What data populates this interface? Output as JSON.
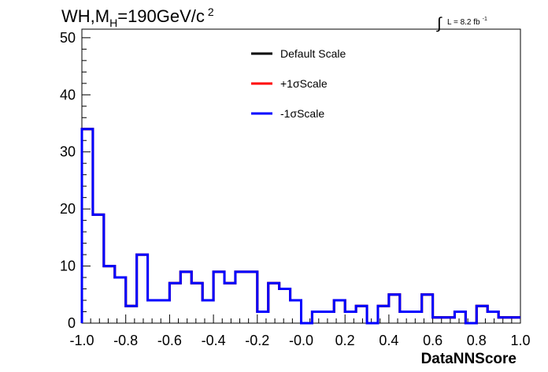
{
  "chart_data": {
    "type": "line",
    "title_main": "WH,M",
    "title_sub": "H",
    "title_rest": "=190GeV/c",
    "title_sup": "2",
    "lumi_text": "L = 8.2 fb",
    "lumi_sup": "-1",
    "xlabel": "DataNNScore",
    "ylabel": "",
    "xlim": [
      -1.0,
      1.0
    ],
    "ylim": [
      0,
      51.5
    ],
    "x_ticks": [
      "-1.0",
      "-0.8",
      "-0.6",
      "-0.4",
      "-0.2",
      "-0.0",
      "0.2",
      "0.4",
      "0.6",
      "0.8",
      "1.0"
    ],
    "y_ticks": [
      "0",
      "10",
      "20",
      "30",
      "40",
      "50"
    ],
    "bin_edges": [
      -1.0,
      -0.95,
      -0.9,
      -0.85,
      -0.8,
      -0.75,
      -0.7,
      -0.65,
      -0.6,
      -0.55,
      -0.5,
      -0.45,
      -0.4,
      -0.35,
      -0.3,
      -0.25,
      -0.2,
      -0.15,
      -0.1,
      -0.05,
      0.0,
      0.05,
      0.1,
      0.15,
      0.2,
      0.25,
      0.3,
      0.35,
      0.4,
      0.45,
      0.5,
      0.55,
      0.6,
      0.65,
      0.7,
      0.75,
      0.8,
      0.85,
      0.9,
      0.95,
      1.0
    ],
    "legend_position": "top-center",
    "series": [
      {
        "name": "Default Scale",
        "color": "#000000",
        "values": [
          34,
          19,
          10,
          8,
          3,
          12,
          4,
          4,
          7,
          9,
          7,
          4,
          9,
          7,
          9,
          9,
          2,
          7,
          6,
          4,
          0,
          2,
          2,
          4,
          2,
          3,
          0,
          3,
          5,
          2,
          2,
          5,
          1,
          1,
          2,
          0,
          3,
          2,
          1,
          1
        ]
      },
      {
        "name": "+1σScale",
        "color": "#ff0000",
        "values": [
          34,
          19,
          10,
          8,
          3,
          12,
          4,
          4,
          7,
          9,
          7,
          4,
          9,
          7,
          9,
          9,
          2,
          7,
          6,
          4,
          0,
          2,
          2,
          4,
          2,
          3,
          0,
          3,
          5,
          2,
          2,
          5,
          1,
          1,
          2,
          0,
          3,
          2,
          1,
          1
        ]
      },
      {
        "name": "-1σScale",
        "color": "#0000ff",
        "values": [
          34,
          19,
          10,
          8,
          3,
          12,
          4,
          4,
          7,
          9,
          7,
          4,
          9,
          7,
          9,
          9,
          2,
          7,
          6,
          4,
          0,
          2,
          2,
          4,
          2,
          3,
          0,
          3,
          5,
          2,
          2,
          5,
          1,
          1,
          2,
          0,
          3,
          2,
          1,
          1
        ]
      }
    ]
  }
}
